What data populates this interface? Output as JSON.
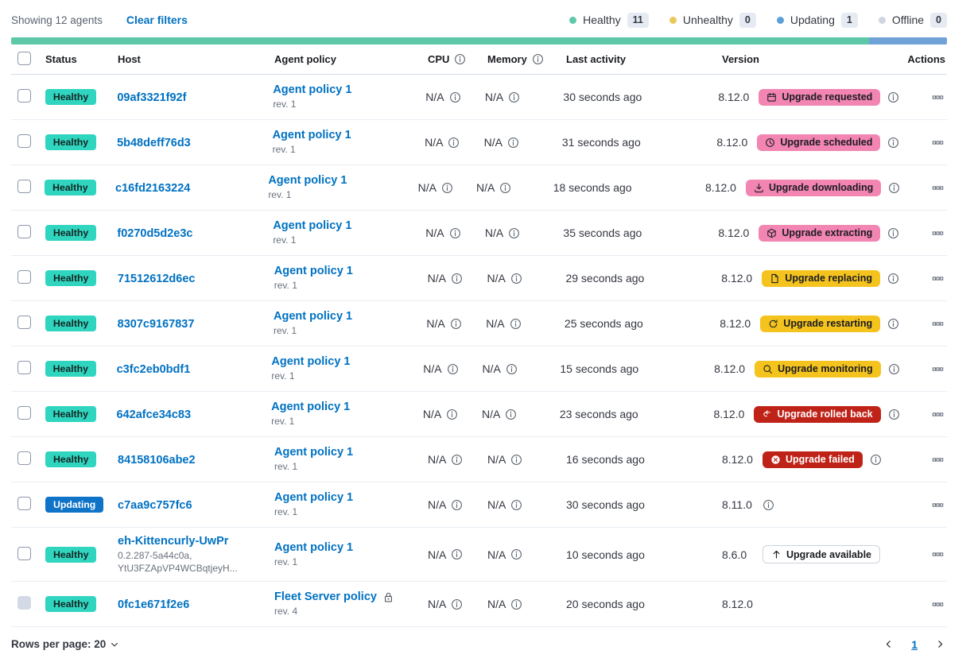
{
  "toolbar": {
    "showing_text": "Showing 12 agents",
    "clear_filters_label": "Clear filters",
    "legend": [
      {
        "label": "Healthy",
        "count": "11",
        "color": "#5dc9a8"
      },
      {
        "label": "Unhealthy",
        "count": "0",
        "color": "#e8c95c"
      },
      {
        "label": "Updating",
        "count": "1",
        "color": "#5b9fd8"
      },
      {
        "label": "Offline",
        "count": "0",
        "color": "#cfd5e0"
      }
    ]
  },
  "health_bar": {
    "segments": [
      {
        "status": "healthy",
        "color": "#5dc9a8",
        "fraction": 0.9167
      },
      {
        "status": "updating",
        "color": "#6fa3d8",
        "fraction": 0.0833
      }
    ]
  },
  "table": {
    "header": {
      "status": "Status",
      "host": "Host",
      "policy": "Agent policy",
      "cpu": "CPU",
      "memory": "Memory",
      "last_activity": "Last activity",
      "version": "Version",
      "actions": "Actions"
    },
    "rows": [
      {
        "status": {
          "label": "Healthy",
          "type": "healthy"
        },
        "host": "09af3321f92f",
        "host_sub": null,
        "policy": "Agent policy 1",
        "policy_rev": "rev. 1",
        "policy_locked": false,
        "cpu": "N/A",
        "memory": "N/A",
        "last_activity": "30 seconds ago",
        "version": "8.12.0",
        "upgrade_badge": {
          "label": "Upgrade requested",
          "type": "pink",
          "icon": "calendar"
        },
        "version_info": true,
        "checkbox_disabled": false
      },
      {
        "status": {
          "label": "Healthy",
          "type": "healthy"
        },
        "host": "5b48deff76d3",
        "host_sub": null,
        "policy": "Agent policy 1",
        "policy_rev": "rev. 1",
        "policy_locked": false,
        "cpu": "N/A",
        "memory": "N/A",
        "last_activity": "31 seconds ago",
        "version": "8.12.0",
        "upgrade_badge": {
          "label": "Upgrade scheduled",
          "type": "pink",
          "icon": "clock"
        },
        "version_info": true,
        "checkbox_disabled": false
      },
      {
        "status": {
          "label": "Healthy",
          "type": "healthy"
        },
        "host": "c16fd2163224",
        "host_sub": null,
        "policy": "Agent policy 1",
        "policy_rev": "rev. 1",
        "policy_locked": false,
        "cpu": "N/A",
        "memory": "N/A",
        "last_activity": "18 seconds ago",
        "version": "8.12.0",
        "upgrade_badge": {
          "label": "Upgrade downloading",
          "type": "pink",
          "icon": "download"
        },
        "version_info": true,
        "checkbox_disabled": false
      },
      {
        "status": {
          "label": "Healthy",
          "type": "healthy"
        },
        "host": "f0270d5d2e3c",
        "host_sub": null,
        "policy": "Agent policy 1",
        "policy_rev": "rev. 1",
        "policy_locked": false,
        "cpu": "N/A",
        "memory": "N/A",
        "last_activity": "35 seconds ago",
        "version": "8.12.0",
        "upgrade_badge": {
          "label": "Upgrade extracting",
          "type": "pink",
          "icon": "package"
        },
        "version_info": true,
        "checkbox_disabled": false
      },
      {
        "status": {
          "label": "Healthy",
          "type": "healthy"
        },
        "host": "71512612d6ec",
        "host_sub": null,
        "policy": "Agent policy 1",
        "policy_rev": "rev. 1",
        "policy_locked": false,
        "cpu": "N/A",
        "memory": "N/A",
        "last_activity": "29 seconds ago",
        "version": "8.12.0",
        "upgrade_badge": {
          "label": "Upgrade replacing",
          "type": "warning",
          "icon": "document"
        },
        "version_info": true,
        "checkbox_disabled": false
      },
      {
        "status": {
          "label": "Healthy",
          "type": "healthy"
        },
        "host": "8307c9167837",
        "host_sub": null,
        "policy": "Agent policy 1",
        "policy_rev": "rev. 1",
        "policy_locked": false,
        "cpu": "N/A",
        "memory": "N/A",
        "last_activity": "25 seconds ago",
        "version": "8.12.0",
        "upgrade_badge": {
          "label": "Upgrade restarting",
          "type": "warning",
          "icon": "refresh"
        },
        "version_info": true,
        "checkbox_disabled": false
      },
      {
        "status": {
          "label": "Healthy",
          "type": "healthy"
        },
        "host": "c3fc2eb0bdf1",
        "host_sub": null,
        "policy": "Agent policy 1",
        "policy_rev": "rev. 1",
        "policy_locked": false,
        "cpu": "N/A",
        "memory": "N/A",
        "last_activity": "15 seconds ago",
        "version": "8.12.0",
        "upgrade_badge": {
          "label": "Upgrade monitoring",
          "type": "warning",
          "icon": "inspect"
        },
        "version_info": true,
        "checkbox_disabled": false
      },
      {
        "status": {
          "label": "Healthy",
          "type": "healthy"
        },
        "host": "642afce34c83",
        "host_sub": null,
        "policy": "Agent policy 1",
        "policy_rev": "rev. 1",
        "policy_locked": false,
        "cpu": "N/A",
        "memory": "N/A",
        "last_activity": "23 seconds ago",
        "version": "8.12.0",
        "upgrade_badge": {
          "label": "Upgrade rolled back",
          "type": "danger",
          "icon": "return"
        },
        "version_info": true,
        "checkbox_disabled": false
      },
      {
        "status": {
          "label": "Healthy",
          "type": "healthy"
        },
        "host": "84158106abe2",
        "host_sub": null,
        "policy": "Agent policy 1",
        "policy_rev": "rev. 1",
        "policy_locked": false,
        "cpu": "N/A",
        "memory": "N/A",
        "last_activity": "16 seconds ago",
        "version": "8.12.0",
        "upgrade_badge": {
          "label": "Upgrade failed",
          "type": "danger",
          "icon": "cross-circle"
        },
        "version_info": true,
        "checkbox_disabled": false
      },
      {
        "status": {
          "label": "Updating",
          "type": "updating"
        },
        "host": "c7aa9c757fc6",
        "host_sub": null,
        "policy": "Agent policy 1",
        "policy_rev": "rev. 1",
        "policy_locked": false,
        "cpu": "N/A",
        "memory": "N/A",
        "last_activity": "30 seconds ago",
        "version": "8.11.0",
        "upgrade_badge": null,
        "version_info": true,
        "checkbox_disabled": false
      },
      {
        "status": {
          "label": "Healthy",
          "type": "healthy"
        },
        "host": "eh-Kittencurly-UwPr",
        "host_sub": "0.2.287-5a44c0a, YtU3FZApVP4WCBqtjeyH...",
        "policy": "Agent policy 1",
        "policy_rev": "rev. 1",
        "policy_locked": false,
        "cpu": "N/A",
        "memory": "N/A",
        "last_activity": "10 seconds ago",
        "version": "8.6.0",
        "upgrade_badge": {
          "label": "Upgrade available",
          "type": "hollow",
          "icon": "up-arrow"
        },
        "version_info": false,
        "checkbox_disabled": false
      },
      {
        "status": {
          "label": "Healthy",
          "type": "healthy"
        },
        "host": "0fc1e671f2e6",
        "host_sub": null,
        "policy": "Fleet Server policy",
        "policy_rev": "rev. 4",
        "policy_locked": true,
        "cpu": "N/A",
        "memory": "N/A",
        "last_activity": "20 seconds ago",
        "version": "8.12.0",
        "upgrade_badge": null,
        "version_info": false,
        "checkbox_disabled": true
      }
    ]
  },
  "footer": {
    "rows_per_page_label": "Rows per page: 20",
    "current_page": "1"
  },
  "colors": {
    "accent_pink": "#f285b1",
    "warning_yellow": "#f4c31e",
    "danger_red": "#bf2318",
    "healthy_teal": "#30d5c0",
    "updating_blue": "#0f74c8",
    "link_blue": "#0071c2"
  }
}
